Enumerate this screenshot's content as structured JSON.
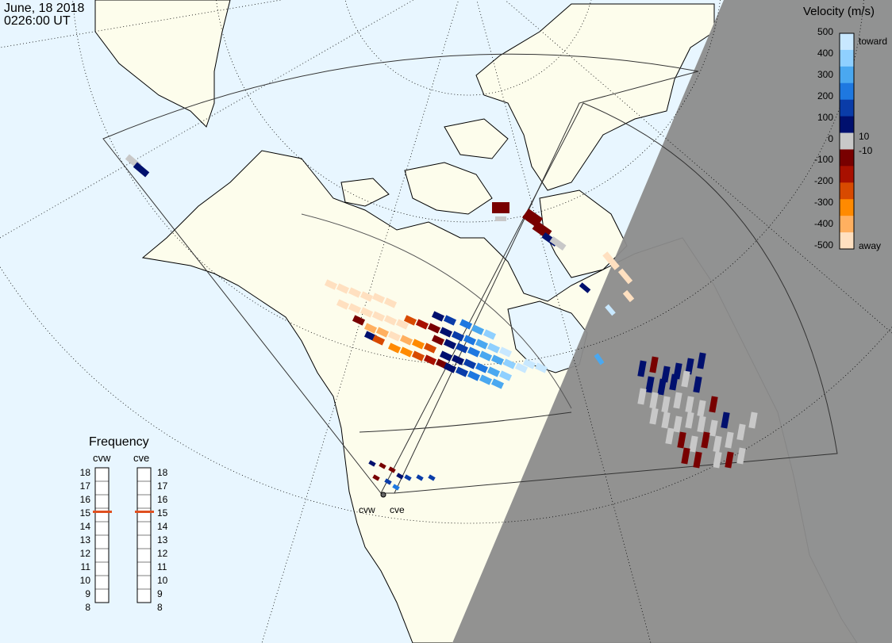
{
  "header": {
    "date": "June, 18 2018",
    "time": "0226:00 UT"
  },
  "velocity_scale": {
    "title": "Velocity (m/s)",
    "ticks": [
      "500",
      "400",
      "300",
      "200",
      "100",
      "0",
      "-100",
      "-200",
      "-300",
      "-400",
      "-500"
    ],
    "inner_labels": [
      "10",
      "-10"
    ],
    "toward_label": "toward",
    "away_label": "away",
    "colors": [
      "#c8e8ff",
      "#8fd0ff",
      "#4aa8f0",
      "#1e78e0",
      "#0a3ca8",
      "#00106e",
      "#c8c8c8",
      "#780000",
      "#a81000",
      "#d84a00",
      "#ff8a00",
      "#ffb060",
      "#ffe0c0"
    ]
  },
  "frequency_panel": {
    "title": "Frequency",
    "channels": [
      "cvw",
      "cve"
    ],
    "scale": [
      "18",
      "17",
      "16",
      "15",
      "14",
      "13",
      "12",
      "11",
      "10",
      "9",
      "8"
    ],
    "current": {
      "cvw": 15,
      "cve": 15
    }
  },
  "sites": {
    "west": "cvw",
    "east": "cve"
  },
  "colors": {
    "ocean": "#e8f6ff",
    "land": "#fdfdec",
    "night": "#8c8c8c",
    "marker": "#e05020"
  }
}
